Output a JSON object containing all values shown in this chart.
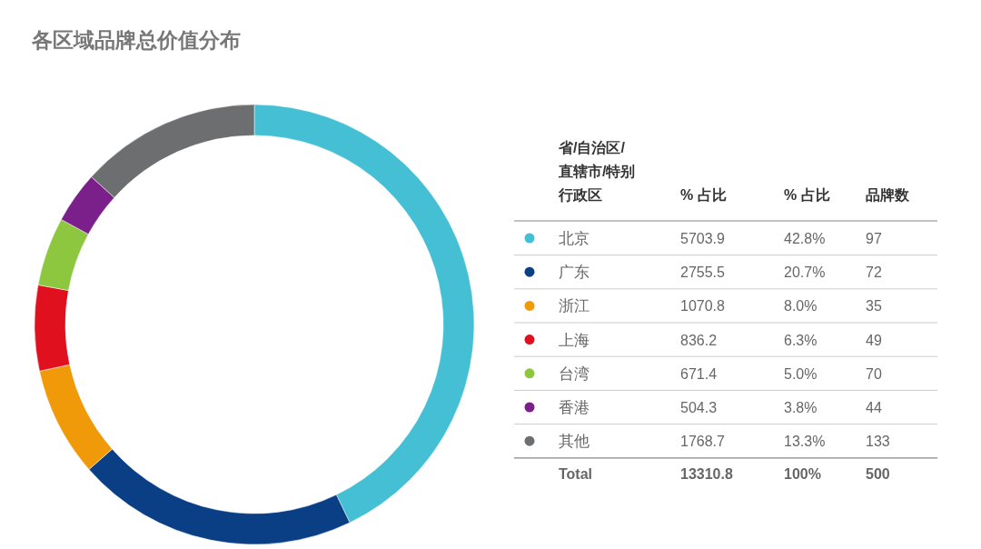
{
  "chart_data": {
    "type": "donut",
    "title": "各区域品牌总价值分布",
    "categories": [
      "北京",
      "广东",
      "浙江",
      "上海",
      "台湾",
      "香港",
      "其他"
    ],
    "values": [
      5703.9,
      2755.5,
      1070.8,
      836.2,
      671.4,
      504.3,
      1768.7
    ],
    "colors": [
      "#45bfd4",
      "#0a3f86",
      "#f09a0a",
      "#e0101e",
      "#8dc63f",
      "#7b1f8a",
      "#6d6e70"
    ],
    "data_labels": true,
    "legend": "right",
    "legend_title": "省/自治区/直辖市/特别行政区",
    "annotations": [
      "% 占比",
      "% 占比",
      "品牌数",
      "42.8%",
      "20.7%",
      "8.0%",
      "6.3%",
      "5.0%",
      "3.8%",
      "13.3%",
      "97",
      "72",
      "35",
      "49",
      "70",
      "44",
      "133",
      "Total",
      "13310.8",
      "100%",
      "500"
    ]
  }
}
